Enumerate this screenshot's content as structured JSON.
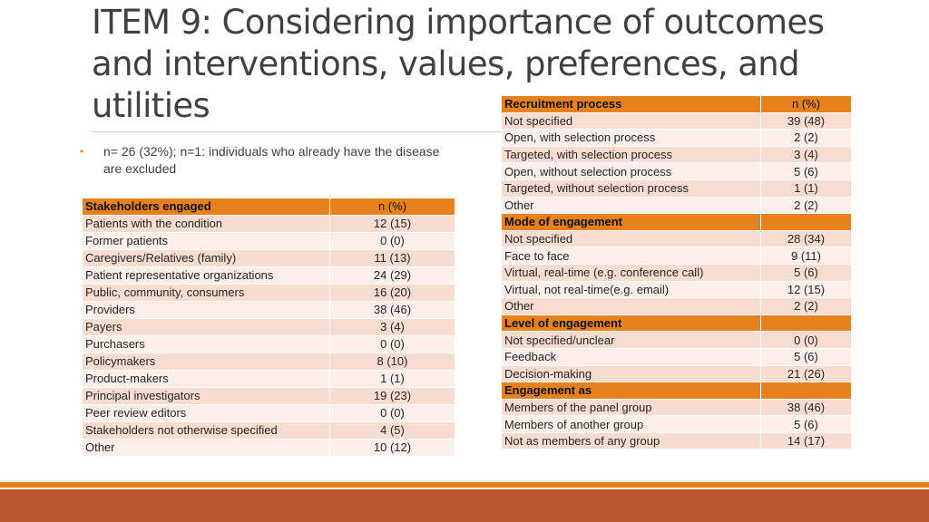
{
  "title": "ITEM 9: Considering importance of outcomes and interventions, values, preferences, and utilities",
  "bullet": "n= 26 (32%); n=1: individuals who already have the disease are excluded",
  "stakeholders": {
    "header": {
      "label": "Stakeholders engaged",
      "value": "n (%)"
    },
    "rows": [
      {
        "label": "Patients with the condition",
        "value": "12 (15)"
      },
      {
        "label": "Former patients",
        "value": "0 (0)"
      },
      {
        "label": "Caregivers/Relatives (family)",
        "value": "11 (13)"
      },
      {
        "label": "Patient representative organizations",
        "value": "24 (29)"
      },
      {
        "label": "Public, community, consumers",
        "value": "16 (20)"
      },
      {
        "label": "Providers",
        "value": "38 (46)"
      },
      {
        "label": "Payers",
        "value": "3 (4)"
      },
      {
        "label": "Purchasers",
        "value": "0 (0)"
      },
      {
        "label": "Policymakers",
        "value": "8 (10)"
      },
      {
        "label": "Product-makers",
        "value": "1 (1)"
      },
      {
        "label": "Principal investigators",
        "value": "19 (23)"
      },
      {
        "label": "Peer review editors",
        "value": "0 (0)"
      },
      {
        "label": "Stakeholders not otherwise specified",
        "value": "4 (5)"
      },
      {
        "label": "Other",
        "value": "10 (12)"
      }
    ]
  },
  "engagement": [
    {
      "header": "Recruitment process",
      "header_value": "n (%)",
      "rows": [
        {
          "label": "Not specified",
          "value": "39 (48)"
        },
        {
          "label": "Open, with selection process",
          "value": "2 (2)"
        },
        {
          "label": "Targeted, with selection process",
          "value": "3 (4)"
        },
        {
          "label": "Open, without selection process",
          "value": "5 (6)"
        },
        {
          "label": "Targeted, without selection process",
          "value": "1 (1)"
        },
        {
          "label": "Other",
          "value": "2 (2)"
        }
      ]
    },
    {
      "header": "Mode of engagement",
      "header_value": "",
      "rows": [
        {
          "label": "Not specified",
          "value": "28 (34)"
        },
        {
          "label": "Face to face",
          "value": "9 (11)"
        },
        {
          "label": "Virtual, real-time (e.g. conference call)",
          "value": "5 (6)"
        },
        {
          "label": "Virtual, not real-time(e.g. email)",
          "value": "12 (15)"
        },
        {
          "label": "Other",
          "value": "2 (2)"
        }
      ]
    },
    {
      "header": "Level of engagement",
      "header_value": "",
      "rows": [
        {
          "label": "Not specified/unclear",
          "value": "0 (0)"
        },
        {
          "label": "Feedback",
          "value": "5 (6)"
        },
        {
          "label": "Decision-making",
          "value": "21 (26)"
        }
      ]
    },
    {
      "header": "Engagement as",
      "header_value": "",
      "rows": [
        {
          "label": "Members of the panel group",
          "value": "38 (46)"
        },
        {
          "label": "Members of another group",
          "value": "5 (6)"
        },
        {
          "label": "Not as members of any group",
          "value": "14 (17)"
        }
      ]
    }
  ],
  "colors": {
    "accent": "#e6821e",
    "band": "#bb5630",
    "row_odd": "#f8dccf",
    "row_even": "#fceee8"
  }
}
